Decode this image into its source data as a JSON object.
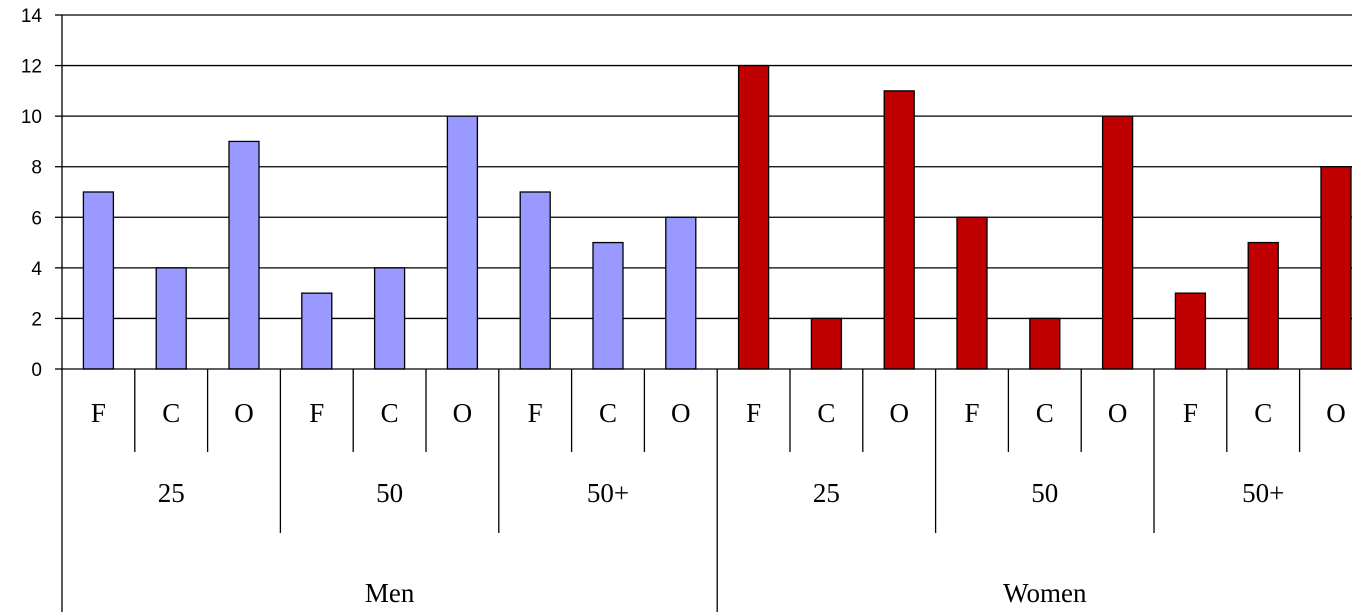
{
  "chart_data": {
    "type": "bar",
    "title": "",
    "xlabel": "",
    "ylabel": "",
    "ylim": [
      0,
      14
    ],
    "yticks": [
      0,
      2,
      4,
      6,
      8,
      10,
      12,
      14
    ],
    "grid": true,
    "legend": "none",
    "groups": [
      "Men",
      "Women"
    ],
    "subgroups": [
      "25",
      "50",
      "50+"
    ],
    "categories": [
      "F",
      "C",
      "O"
    ],
    "series": [
      {
        "group": "Men",
        "color": "#9999ff",
        "values": [
          [
            7,
            4,
            9
          ],
          [
            3,
            4,
            10
          ],
          [
            7,
            5,
            6
          ]
        ]
      },
      {
        "group": "Women",
        "color": "#c00000",
        "values": [
          [
            12,
            2,
            11
          ],
          [
            6,
            2,
            10
          ],
          [
            3,
            5,
            8
          ]
        ]
      }
    ]
  }
}
